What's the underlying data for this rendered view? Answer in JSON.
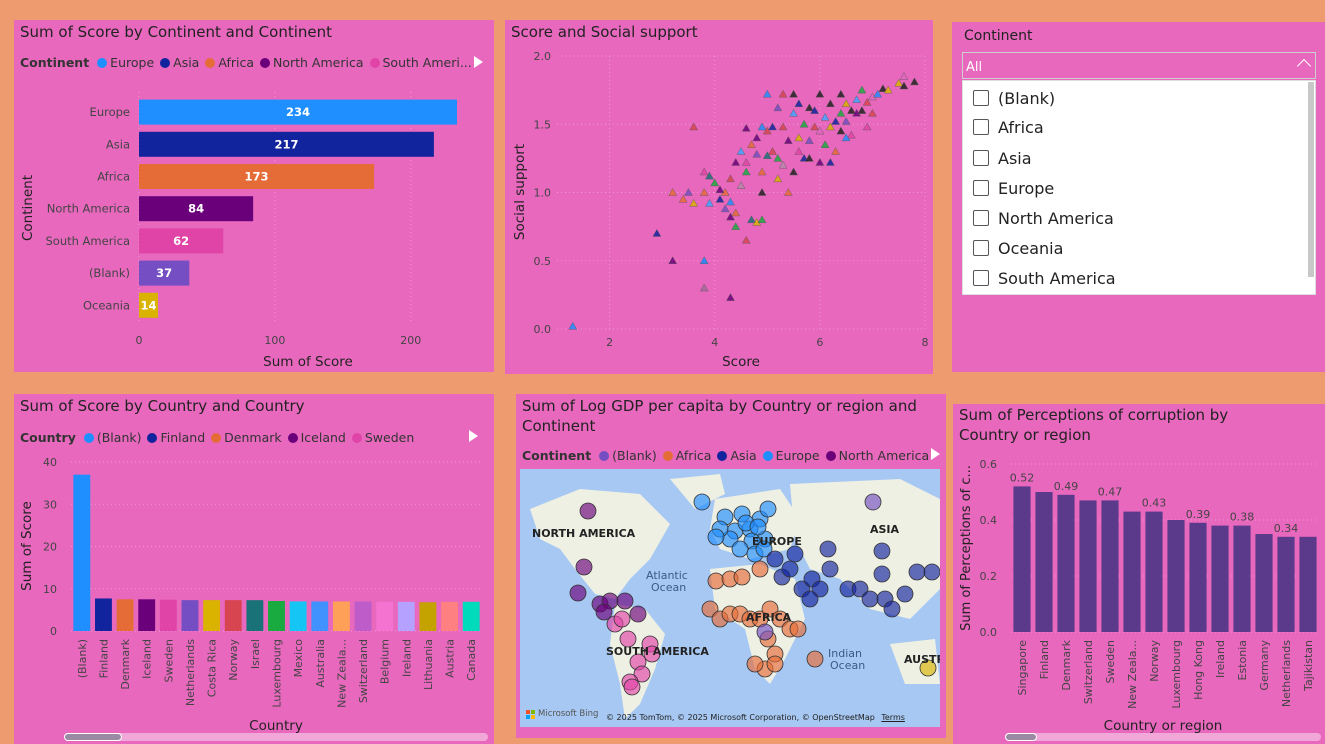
{
  "colors": {
    "background": "#ED9B6F",
    "panel": "#E868BE",
    "europe": "#1F8EFF",
    "asia": "#12239E",
    "africa": "#E66C37",
    "north_america": "#6B007B",
    "south_america": "#E044A7",
    "blank": "#744EC2",
    "oceania": "#D9B300",
    "corruption_bar": "#5B3A8C"
  },
  "panels": {
    "continent_bar": {
      "title": "Sum of Score by Continent and Continent",
      "legend_title": "Continent",
      "legend": [
        "Europe",
        "Asia",
        "Africa",
        "North America",
        "South Ameri..."
      ]
    },
    "scatter": {
      "title": "Score and Social support"
    },
    "slicer": {
      "title": "Continent",
      "selected": "All",
      "options": [
        "(Blank)",
        "Africa",
        "Asia",
        "Europe",
        "North America",
        "Oceania",
        "South America"
      ]
    },
    "country_bar": {
      "title": "Sum of Score by Country and Country",
      "legend_title": "Country",
      "legend": [
        "(Blank)",
        "Finland",
        "Denmark",
        "Iceland",
        "Sweden"
      ]
    },
    "map": {
      "title": "Sum of Log GDP per capita by Country or region and Continent",
      "legend_title": "Continent",
      "legend": [
        "(Blank)",
        "Africa",
        "Asia",
        "Europe",
        "North America"
      ],
      "labels": [
        "NORTH AMERICA",
        "SOUTH AMERICA",
        "ASIA",
        "EUROPE",
        "AFRICA",
        "Atlantic",
        "Ocean",
        "Indian",
        "Ocean",
        "AUSTR"
      ],
      "bing": "Microsoft Bing",
      "copyright": "© 2025 TomTom, © 2025 Microsoft Corporation, © OpenStreetMap",
      "terms": "Terms"
    },
    "corruption_bar": {
      "title_line1": "Sum of Perceptions of corruption by",
      "title_line2": "Country or region"
    }
  },
  "chart_data": [
    {
      "type": "bar",
      "orientation": "horizontal",
      "title": "Sum of Score by Continent and Continent",
      "categories": [
        "Europe",
        "Asia",
        "Africa",
        "North America",
        "South America",
        "(Blank)",
        "Oceania"
      ],
      "values": [
        234,
        217,
        173,
        84,
        62,
        37,
        14
      ],
      "value_labels": [
        "234",
        "217",
        "173",
        "84",
        "62",
        "37",
        "14"
      ],
      "xlabel": "Sum of Score",
      "ylabel": "Continent",
      "xlim": [
        0,
        234
      ],
      "xticks": [
        0,
        100,
        200
      ],
      "xtick_labels": [
        "0",
        "100",
        "200"
      ]
    },
    {
      "type": "scatter",
      "title": "Score and Social support",
      "xlabel": "Score",
      "ylabel": "Social support",
      "xlim": [
        1,
        8
      ],
      "ylim": [
        0,
        2
      ],
      "xticks": [
        2,
        4,
        6,
        8
      ],
      "xtick_labels": [
        "2",
        "4",
        "6",
        "8"
      ],
      "yticks": [
        0,
        0.5,
        1,
        1.5,
        2
      ],
      "ytick_labels": [
        "0.0",
        "0.5",
        "1.0",
        "1.5",
        "2.0"
      ],
      "marker": "triangle",
      "points": [
        [
          1.3,
          0.02,
          "#1F8EFF"
        ],
        [
          2.9,
          0.7,
          "#12239E"
        ],
        [
          3.2,
          0.5,
          "#6B007B"
        ],
        [
          3.8,
          0.5,
          "#118DFF"
        ],
        [
          3.8,
          0.3,
          "#A66999"
        ],
        [
          4.3,
          0.23,
          "#6B007B"
        ],
        [
          3.6,
          1.48,
          "#D64550"
        ],
        [
          3.2,
          1.0,
          "#E66C37"
        ],
        [
          3.4,
          0.95,
          "#E66C37"
        ],
        [
          3.5,
          1.0,
          "#744EC2"
        ],
        [
          3.6,
          0.92,
          "#D9B300"
        ],
        [
          3.8,
          1.0,
          "#E66C37"
        ],
        [
          3.9,
          1.12,
          "#197278"
        ],
        [
          3.8,
          1.15,
          "#E044A7"
        ],
        [
          4.0,
          1.07,
          "#1AAB40"
        ],
        [
          3.9,
          0.92,
          "#41A4FF"
        ],
        [
          4.1,
          0.95,
          "#12239E"
        ],
        [
          4.2,
          1.0,
          "#E66C37"
        ],
        [
          4.2,
          0.88,
          "#744EC2"
        ],
        [
          4.3,
          0.93,
          "#1F8EFF"
        ],
        [
          4.3,
          0.82,
          "#6B007B"
        ],
        [
          4.4,
          0.75,
          "#1AAB40"
        ],
        [
          4.4,
          0.85,
          "#E66C37"
        ],
        [
          4.5,
          1.05,
          "#B887AD"
        ],
        [
          4.6,
          0.65,
          "#D64550"
        ],
        [
          4.7,
          0.8,
          "#197278"
        ],
        [
          4.8,
          0.78,
          "#D9B300"
        ],
        [
          4.9,
          0.8,
          "#1AAB40"
        ],
        [
          4.3,
          1.1,
          "#D64550"
        ],
        [
          4.4,
          1.22,
          "#6B007B"
        ],
        [
          4.5,
          1.3,
          "#41A4FF"
        ],
        [
          4.6,
          1.22,
          "#E044A7"
        ],
        [
          4.6,
          1.47,
          "#6B007B"
        ],
        [
          4.7,
          1.35,
          "#E66C37"
        ],
        [
          4.8,
          1.28,
          "#744EC2"
        ],
        [
          4.9,
          1.0,
          "#222222"
        ],
        [
          4.9,
          1.15,
          "#E66C37"
        ],
        [
          5.0,
          1.45,
          "#D64550"
        ],
        [
          5.0,
          1.27,
          "#197278"
        ],
        [
          5.1,
          1.48,
          "#12239E"
        ],
        [
          5.2,
          1.25,
          "#1AAB40"
        ],
        [
          5.2,
          1.1,
          "#D9B300"
        ],
        [
          5.3,
          1.48,
          "#D64550"
        ],
        [
          5.3,
          1.2,
          "#B887AD"
        ],
        [
          5.4,
          1.38,
          "#6B007B"
        ],
        [
          5.4,
          1.0,
          "#E66C37"
        ],
        [
          5.5,
          1.15,
          "#222222"
        ],
        [
          5.5,
          1.58,
          "#41A4FF"
        ],
        [
          5.6,
          1.3,
          "#E044A7"
        ],
        [
          5.6,
          1.4,
          "#D9B300"
        ],
        [
          5.7,
          1.25,
          "#12239E"
        ],
        [
          5.7,
          1.5,
          "#1AAB40"
        ],
        [
          5.8,
          1.62,
          "#222222"
        ],
        [
          5.8,
          1.38,
          "#744EC2"
        ],
        [
          5.9,
          1.48,
          "#D64550"
        ],
        [
          5.9,
          1.6,
          "#12239E"
        ],
        [
          6.0,
          1.22,
          "#6B007B"
        ],
        [
          6.0,
          1.45,
          "#E066C0"
        ],
        [
          6.0,
          1.72,
          "#222222"
        ],
        [
          6.1,
          1.35,
          "#1AAB40"
        ],
        [
          6.1,
          1.55,
          "#41A4FF"
        ],
        [
          6.2,
          1.65,
          "#222222"
        ],
        [
          6.2,
          1.48,
          "#D9B300"
        ],
        [
          6.3,
          1.3,
          "#E66C37"
        ],
        [
          6.3,
          1.52,
          "#12239E"
        ],
        [
          6.4,
          1.58,
          "#1AAB40"
        ],
        [
          6.4,
          1.72,
          "#222222"
        ],
        [
          6.5,
          1.52,
          "#744EC2"
        ],
        [
          6.5,
          1.65,
          "#D9B300"
        ],
        [
          6.6,
          1.6,
          "#222222"
        ],
        [
          6.6,
          1.42,
          "#E044A7"
        ],
        [
          6.7,
          1.68,
          "#41A4FF"
        ],
        [
          6.7,
          1.58,
          "#6B007B"
        ],
        [
          6.8,
          1.75,
          "#1AAB40"
        ],
        [
          6.8,
          1.6,
          "#222222"
        ],
        [
          6.9,
          1.66,
          "#D64550"
        ],
        [
          7.0,
          1.7,
          "#E066C0"
        ],
        [
          7.1,
          1.72,
          "#1F8EFF"
        ],
        [
          7.2,
          1.76,
          "#222222"
        ],
        [
          7.3,
          1.75,
          "#D9B300"
        ],
        [
          7.5,
          1.8,
          "#D9B300"
        ],
        [
          7.6,
          1.78,
          "#222222"
        ],
        [
          7.6,
          1.85,
          "#E066C0"
        ],
        [
          7.8,
          1.81,
          "#222222"
        ],
        [
          5.5,
          1.72,
          "#222222"
        ],
        [
          5.6,
          1.65,
          "#12239E"
        ],
        [
          5.3,
          1.72,
          "#D64550"
        ],
        [
          5.0,
          1.72,
          "#1F8EFF"
        ],
        [
          6.4,
          1.45,
          "#222222"
        ],
        [
          6.9,
          1.48,
          "#E044A7"
        ],
        [
          7.0,
          1.58,
          "#D64550"
        ],
        [
          6.5,
          1.4,
          "#1F8EFF"
        ],
        [
          5.8,
          1.25,
          "#222222"
        ],
        [
          6.2,
          1.22,
          "#12239E"
        ],
        [
          4.8,
          1.4,
          "#6B007B"
        ],
        [
          4.9,
          1.48,
          "#1F8EFF"
        ],
        [
          5.1,
          1.3,
          "#D64550"
        ],
        [
          5.2,
          1.62,
          "#744EC2"
        ],
        [
          4.6,
          1.15,
          "#1AAB40"
        ],
        [
          4.1,
          1.02,
          "#6B007B"
        ]
      ]
    },
    {
      "type": "bar",
      "orientation": "vertical",
      "title": "Sum of Score by Country and Country",
      "categories": [
        "(Blank)",
        "Finland",
        "Denmark",
        "Iceland",
        "Sweden",
        "Netherlands",
        "Costa Rica",
        "Norway",
        "Israel",
        "Luxembourg",
        "Mexico",
        "Australia",
        "New Zeala...",
        "Switzerland",
        "Belgium",
        "Ireland",
        "Lithuania",
        "Austria",
        "Canada"
      ],
      "values": [
        37,
        7.7,
        7.5,
        7.5,
        7.4,
        7.3,
        7.3,
        7.3,
        7.3,
        7.1,
        7.0,
        7.0,
        7.0,
        7.0,
        6.9,
        6.9,
        6.8,
        6.9,
        6.9
      ],
      "colors": [
        "#1F8EFF",
        "#12239E",
        "#E66C37",
        "#6B007B",
        "#E044A7",
        "#744EC2",
        "#D9B300",
        "#D64550",
        "#197278",
        "#1AAB40",
        "#15C6F4",
        "#4092FF",
        "#FFA058",
        "#BE5DC9",
        "#F472D0",
        "#B5A1FF",
        "#C4A200",
        "#FF8080",
        "#00DBBC"
      ],
      "xlabel": "Country",
      "ylabel": "Sum of Score",
      "ylim": [
        0,
        40
      ],
      "yticks": [
        0,
        10,
        20,
        30,
        40
      ],
      "ytick_labels": [
        "0",
        "10",
        "20",
        "30",
        "40"
      ]
    },
    {
      "type": "bar",
      "orientation": "vertical",
      "title": "Sum of Perceptions of corruption by Country or region",
      "categories": [
        "Singapore",
        "Finland",
        "Denmark",
        "Switzerland",
        "Sweden",
        "New Zeala...",
        "Norway",
        "Luxembourg",
        "Hong Kong",
        "Ireland",
        "Estonia",
        "Germany",
        "Netherlands",
        "Tajikistan"
      ],
      "values": [
        0.52,
        0.5,
        0.49,
        0.47,
        0.47,
        0.43,
        0.43,
        0.4,
        0.39,
        0.38,
        0.38,
        0.35,
        0.34,
        0.34
      ],
      "value_labels": [
        "0.52",
        "",
        "0.49",
        "",
        "0.47",
        "",
        "0.43",
        "",
        "0.39",
        "",
        "0.38",
        "",
        "0.34",
        ""
      ],
      "xlabel": "Country or region",
      "ylabel": "Sum of Perceptions of c...",
      "ylim": [
        0,
        0.6
      ],
      "yticks": [
        0,
        0.2,
        0.4,
        0.6
      ],
      "ytick_labels": [
        "0.0",
        "0.2",
        "0.4",
        "0.6"
      ]
    }
  ]
}
